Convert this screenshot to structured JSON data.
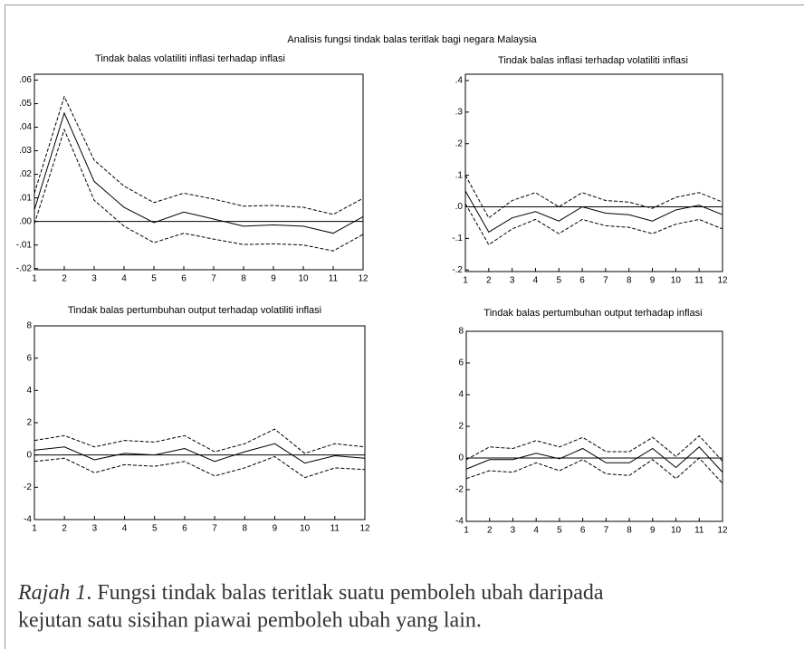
{
  "title": "Analisis fungsi tindak balas teritlak bagi negara Malaysia",
  "chart_data": [
    {
      "type": "line",
      "title": "Tindak balas volatiliti inflasi terhadap inflasi",
      "x": [
        1,
        2,
        3,
        4,
        5,
        6,
        7,
        8,
        9,
        10,
        11,
        12
      ],
      "xlim": [
        1,
        12
      ],
      "xticks": [
        1,
        2,
        3,
        4,
        5,
        6,
        7,
        8,
        9,
        10,
        11,
        12
      ],
      "ylim": [
        -0.0205,
        0.0625
      ],
      "yticks": [
        {
          "value": 0.06,
          "label": ".06"
        },
        {
          "value": 0.05,
          "label": ".05"
        },
        {
          "value": 0.04,
          "label": ".04"
        },
        {
          "value": 0.03,
          "label": ".03"
        },
        {
          "value": 0.02,
          "label": ".02"
        },
        {
          "value": 0.01,
          "label": ".01"
        },
        {
          "value": 0,
          "label": ".00"
        },
        {
          "value": -0.01,
          "label": "-.01"
        },
        {
          "value": -0.02,
          "label": "-.02"
        }
      ],
      "reference_line": 0,
      "series": [
        {
          "color": "#000000",
          "dashed": true,
          "values": [
            0.012,
            0.053,
            0.026,
            0.015,
            0.008,
            0.012,
            0.0095,
            0.0065,
            0.0068,
            0.006,
            0.003,
            0.0098
          ]
        },
        {
          "color": "#000000",
          "dashed": false,
          "values": [
            0.005,
            0.046,
            0.017,
            0.006,
            -0.0005,
            0.004,
            0.001,
            -0.002,
            -0.0015,
            -0.002,
            -0.005,
            0.002
          ]
        },
        {
          "color": "#000000",
          "dashed": true,
          "values": [
            -0.001,
            0.039,
            0.009,
            -0.002,
            -0.009,
            -0.005,
            -0.0075,
            -0.0098,
            -0.0095,
            -0.01,
            -0.0125,
            -0.0055
          ]
        }
      ]
    },
    {
      "type": "line",
      "title": "Tindak balas inflasi terhadap volatiliti inflasi",
      "x": [
        1,
        2,
        3,
        4,
        5,
        6,
        7,
        8,
        9,
        10,
        11,
        12
      ],
      "xlim": [
        1,
        12
      ],
      "xticks": [
        1,
        2,
        3,
        4,
        5,
        6,
        7,
        8,
        9,
        10,
        11,
        12
      ],
      "ylim": [
        -0.205,
        0.42
      ],
      "yticks": [
        {
          "value": 0.4,
          "label": ".4"
        },
        {
          "value": 0.3,
          "label": ".3"
        },
        {
          "value": 0.2,
          "label": ".2"
        },
        {
          "value": 0.1,
          "label": ".1"
        },
        {
          "value": 0,
          "label": ".0"
        },
        {
          "value": -0.1,
          "label": "-.1"
        },
        {
          "value": -0.2,
          "label": "-.2"
        }
      ],
      "reference_line": 0,
      "series": [
        {
          "color": "#000000",
          "dashed": true,
          "values": [
            0.1,
            -0.035,
            0.02,
            0.045,
            0.0,
            0.045,
            0.02,
            0.015,
            -0.005,
            0.03,
            0.045,
            0.015
          ]
        },
        {
          "color": "#000000",
          "dashed": false,
          "values": [
            0.05,
            -0.08,
            -0.035,
            -0.015,
            -0.045,
            0.0,
            -0.02,
            -0.025,
            -0.045,
            -0.01,
            0.005,
            -0.025
          ]
        },
        {
          "color": "#000000",
          "dashed": true,
          "values": [
            0.01,
            -0.12,
            -0.07,
            -0.04,
            -0.085,
            -0.04,
            -0.06,
            -0.065,
            -0.085,
            -0.055,
            -0.04,
            -0.07
          ]
        }
      ]
    },
    {
      "type": "line",
      "title": "Tindak balas pertumbuhan output terhadap volatiliti inflasi",
      "x": [
        1,
        2,
        3,
        4,
        5,
        6,
        7,
        8,
        9,
        10,
        11,
        12
      ],
      "xlim": [
        1,
        12
      ],
      "xticks": [
        1,
        2,
        3,
        4,
        5,
        6,
        7,
        8,
        9,
        10,
        11,
        12
      ],
      "ylim": [
        -4,
        8
      ],
      "yticks": [
        8,
        6,
        4,
        2,
        0,
        -2,
        -4
      ],
      "reference_line": 0,
      "series": [
        {
          "color": "#000000",
          "dashed": true,
          "values": [
            0.9,
            1.2,
            0.5,
            0.9,
            0.8,
            1.2,
            0.2,
            0.7,
            1.6,
            0.1,
            0.7,
            0.5
          ]
        },
        {
          "color": "#000000",
          "dashed": false,
          "values": [
            0.3,
            0.5,
            -0.3,
            0.1,
            0.0,
            0.4,
            -0.4,
            0.2,
            0.7,
            -0.5,
            -0.05,
            -0.2
          ]
        },
        {
          "color": "#000000",
          "dashed": true,
          "values": [
            -0.4,
            -0.2,
            -1.1,
            -0.6,
            -0.7,
            -0.4,
            -1.3,
            -0.8,
            -0.1,
            -1.4,
            -0.8,
            -0.9
          ]
        }
      ]
    },
    {
      "type": "line",
      "title": "Tindak balas pertumbuhan output terhadap inflasi",
      "x": [
        1,
        2,
        3,
        4,
        5,
        6,
        7,
        8,
        9,
        10,
        11,
        12
      ],
      "xlim": [
        1,
        12
      ],
      "xticks": [
        1,
        2,
        3,
        4,
        5,
        6,
        7,
        8,
        9,
        10,
        11,
        12
      ],
      "ylim": [
        -4,
        8
      ],
      "yticks": [
        8,
        6,
        4,
        2,
        0,
        -2,
        -4
      ],
      "reference_line": 0,
      "series": [
        {
          "color": "#000000",
          "dashed": true,
          "values": [
            -0.1,
            0.7,
            0.6,
            1.1,
            0.7,
            1.3,
            0.4,
            0.4,
            1.3,
            0.1,
            1.4,
            -0.2
          ]
        },
        {
          "color": "#000000",
          "dashed": false,
          "values": [
            -0.7,
            -0.1,
            -0.1,
            0.3,
            -0.05,
            0.6,
            -0.3,
            -0.3,
            0.6,
            -0.6,
            0.7,
            -0.9
          ]
        },
        {
          "color": "#000000",
          "dashed": true,
          "values": [
            -1.3,
            -0.8,
            -0.9,
            -0.3,
            -0.8,
            -0.1,
            -1.0,
            -1.1,
            -0.1,
            -1.3,
            0.0,
            -1.6
          ]
        }
      ]
    }
  ],
  "caption": {
    "label": "Rajah 1",
    "lines": [
      ". Fungsi tindak balas teritlak suatu pemboleh ubah daripada",
      "kejutan satu sisihan piawai pemboleh ubah yang lain."
    ]
  }
}
